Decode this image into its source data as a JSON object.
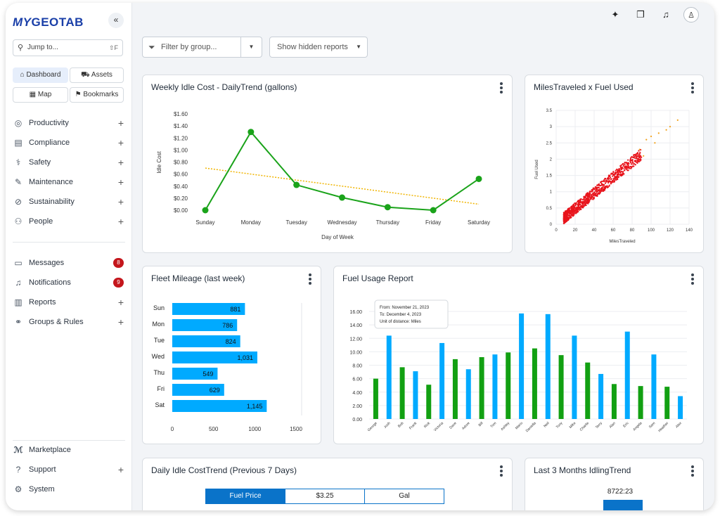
{
  "app": {
    "logo_my": "MY",
    "logo_geotab": "GEOTAB"
  },
  "sidebar": {
    "collapse_icon": "«",
    "jump": {
      "placeholder": "Jump to...",
      "shortcut": "⇧F"
    },
    "quick": [
      {
        "label": "Dashboard",
        "icon": "home-icon",
        "active": true
      },
      {
        "label": "Assets",
        "icon": "truck-icon"
      },
      {
        "label": "Map",
        "icon": "map-icon"
      },
      {
        "label": "Bookmarks",
        "icon": "bookmark-icon"
      }
    ],
    "nav": [
      {
        "label": "Productivity",
        "icon": "globe-icon"
      },
      {
        "label": "Compliance",
        "icon": "clipboard-icon"
      },
      {
        "label": "Safety",
        "icon": "shield-icon"
      },
      {
        "label": "Maintenance",
        "icon": "wrench-icon"
      },
      {
        "label": "Sustainability",
        "icon": "leaf-icon"
      },
      {
        "label": "People",
        "icon": "people-icon"
      }
    ],
    "nav2": [
      {
        "label": "Messages",
        "icon": "message-icon",
        "badge": "8"
      },
      {
        "label": "Notifications",
        "icon": "bell-icon",
        "badge": "9"
      },
      {
        "label": "Reports",
        "icon": "report-icon"
      },
      {
        "label": "Groups & Rules",
        "icon": "groups-icon"
      }
    ],
    "bottom": [
      {
        "label": "Marketplace",
        "icon": "marketplace-icon"
      },
      {
        "label": "Support",
        "icon": "help-icon"
      },
      {
        "label": "System",
        "icon": "gear-icon"
      }
    ]
  },
  "toolbar": {
    "filter_placeholder": "Filter by group...",
    "hidden_reports": "Show hidden reports"
  },
  "cards": {
    "weekly_idle": {
      "title": "Weekly Idle Cost - DailyTrend (gallons)"
    },
    "miles_fuel": {
      "title": "MilesTraveled x Fuel Used"
    },
    "fleet_mileage": {
      "title": "Fleet Mileage (last week)"
    },
    "fuel_usage": {
      "title": "Fuel Usage Report",
      "tooltip": [
        "From: November 21, 2023",
        "To: December 4, 2023",
        "Unit of distance: Miles"
      ]
    },
    "daily_idle": {
      "title": "Daily Idle CostTrend (Previous 7 Days)",
      "table": [
        "Fuel Price",
        "$3.25",
        "Gal"
      ]
    },
    "idling_trend": {
      "title": "Last 3 Months IdlingTrend",
      "value": "8722:23"
    }
  },
  "chart_data": [
    {
      "type": "line",
      "title": "Weekly Idle Cost - DailyTrend (gallons)",
      "xlabel": "Day of Week",
      "ylabel": "Idle Cost",
      "categories": [
        "Sunday",
        "Monday",
        "Tuesday",
        "Wednesday",
        "Thursday",
        "Friday",
        "Saturday"
      ],
      "values": [
        0.0,
        1.3,
        0.42,
        0.21,
        0.05,
        0.0,
        0.52
      ],
      "trend": [
        0.7,
        0.1
      ],
      "ylim": [
        0,
        1.6
      ],
      "yticks": [
        "$1.60",
        "$1.40",
        "$1.20",
        "$1.00",
        "$0.80",
        "$0.60",
        "$0.40",
        "$0.20",
        "$0.00"
      ],
      "line_color": "#1aa31a",
      "trend_color": "#f0b400"
    },
    {
      "type": "scatter",
      "title": "MilesTraveled x Fuel Used",
      "xlabel": "MilesTraveled",
      "ylabel": "Fuel Used",
      "xlim": [
        0,
        140
      ],
      "ylim": [
        0,
        3.5
      ],
      "xticks": [
        0,
        20,
        40,
        60,
        80,
        100,
        120,
        140
      ],
      "yticks": [
        0,
        0.5,
        1,
        1.5,
        2,
        2.5,
        3,
        3.5
      ],
      "relation": "fuel ≈ 0.024 × miles, ~900 points",
      "point_color": "#e8141c"
    },
    {
      "type": "bar",
      "orientation": "horizontal",
      "title": "Fleet Mileage (last week)",
      "categories": [
        "Sun",
        "Mon",
        "Tue",
        "Wed",
        "Thu",
        "Fri",
        "Sat"
      ],
      "values": [
        881,
        786,
        824,
        1031,
        549,
        629,
        1145
      ],
      "labels": [
        "881",
        "786",
        "824",
        "1,031",
        "549",
        "629",
        "1,145"
      ],
      "xlim": [
        0,
        1500
      ],
      "xticks": [
        0,
        500,
        1000,
        1500
      ],
      "bar_color": "#00aaff"
    },
    {
      "type": "bar",
      "title": "Fuel Usage Report",
      "categories": [
        "George",
        "Josh",
        "Bob",
        "Frank",
        "Rick",
        "Victoria",
        "Dave",
        "Adore",
        "Bill",
        "Tom",
        "Ashley",
        "Mario",
        "Daniella",
        "Neil",
        "Tony",
        "Mike",
        "Charlie",
        "Terry",
        "Alan",
        "Eric",
        "Angela",
        "Sam",
        "Heather",
        "Alex"
      ],
      "values": [
        6.0,
        12.4,
        7.7,
        7.1,
        5.1,
        11.3,
        8.9,
        7.4,
        9.2,
        9.6,
        9.9,
        15.7,
        10.5,
        15.6,
        9.5,
        12.4,
        8.4,
        6.7,
        5.2,
        13.0,
        4.9,
        9.6,
        4.8,
        3.4
      ],
      "colors": [
        "#12a012",
        "#00aaff"
      ],
      "ylim": [
        0,
        16
      ],
      "yticks": [
        "16.00",
        "14.00",
        "12.00",
        "10.00",
        "8.00",
        "6.00",
        "4.00",
        "2.00",
        "0.00"
      ]
    },
    {
      "type": "bar",
      "title": "Last 3 Months IdlingTrend",
      "categories": [
        ""
      ],
      "values": [
        8722.38
      ],
      "labels": [
        "8722:23"
      ],
      "bar_color": "#0a73c9"
    }
  ]
}
